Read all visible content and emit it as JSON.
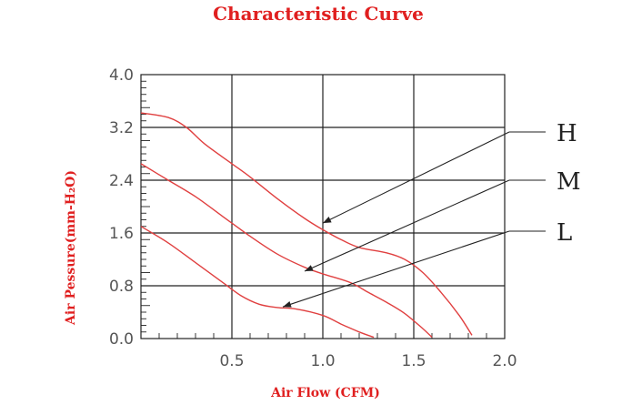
{
  "chart_data": {
    "type": "line",
    "title": "Characteristic Curve",
    "xlabel": "Air Flow (CFM)",
    "ylabel": "Air Pessure(mm-H₂O)",
    "xlim": [
      0,
      2.0
    ],
    "ylim": [
      0,
      4.0
    ],
    "x_ticks": [
      "0.5",
      "1.0",
      "1.5",
      "2.0"
    ],
    "y_ticks": [
      "0.0",
      "0.8",
      "1.6",
      "2.4",
      "3.2",
      "4.0"
    ],
    "grid": true,
    "colors": {
      "curve": "#e04040",
      "text": "#e02020",
      "grid": "#222222"
    },
    "series": [
      {
        "name": "H",
        "points": [
          [
            0.0,
            3.42
          ],
          [
            0.15,
            3.35
          ],
          [
            0.25,
            3.2
          ],
          [
            0.35,
            2.95
          ],
          [
            0.5,
            2.65
          ],
          [
            0.6,
            2.45
          ],
          [
            0.75,
            2.12
          ],
          [
            0.9,
            1.82
          ],
          [
            1.0,
            1.65
          ],
          [
            1.1,
            1.5
          ],
          [
            1.2,
            1.38
          ],
          [
            1.35,
            1.3
          ],
          [
            1.45,
            1.2
          ],
          [
            1.55,
            1.0
          ],
          [
            1.65,
            0.7
          ],
          [
            1.75,
            0.35
          ],
          [
            1.82,
            0.05
          ]
        ]
      },
      {
        "name": "M",
        "points": [
          [
            0.0,
            2.65
          ],
          [
            0.15,
            2.4
          ],
          [
            0.3,
            2.15
          ],
          [
            0.45,
            1.85
          ],
          [
            0.6,
            1.55
          ],
          [
            0.75,
            1.28
          ],
          [
            0.9,
            1.08
          ],
          [
            1.0,
            0.98
          ],
          [
            1.15,
            0.85
          ],
          [
            1.25,
            0.7
          ],
          [
            1.35,
            0.55
          ],
          [
            1.45,
            0.38
          ],
          [
            1.55,
            0.15
          ],
          [
            1.6,
            0.02
          ]
        ]
      },
      {
        "name": "L",
        "points": [
          [
            0.0,
            1.7
          ],
          [
            0.15,
            1.45
          ],
          [
            0.3,
            1.15
          ],
          [
            0.45,
            0.85
          ],
          [
            0.55,
            0.65
          ],
          [
            0.65,
            0.52
          ],
          [
            0.75,
            0.47
          ],
          [
            0.85,
            0.45
          ],
          [
            1.0,
            0.35
          ],
          [
            1.1,
            0.22
          ],
          [
            1.2,
            0.1
          ],
          [
            1.28,
            0.02
          ]
        ]
      }
    ],
    "annotations": [
      {
        "label": "H",
        "target": [
          1.0,
          1.75
        ]
      },
      {
        "label": "M",
        "target": [
          0.9,
          1.02
        ]
      },
      {
        "label": "L",
        "target": [
          0.78,
          0.48
        ]
      }
    ]
  }
}
